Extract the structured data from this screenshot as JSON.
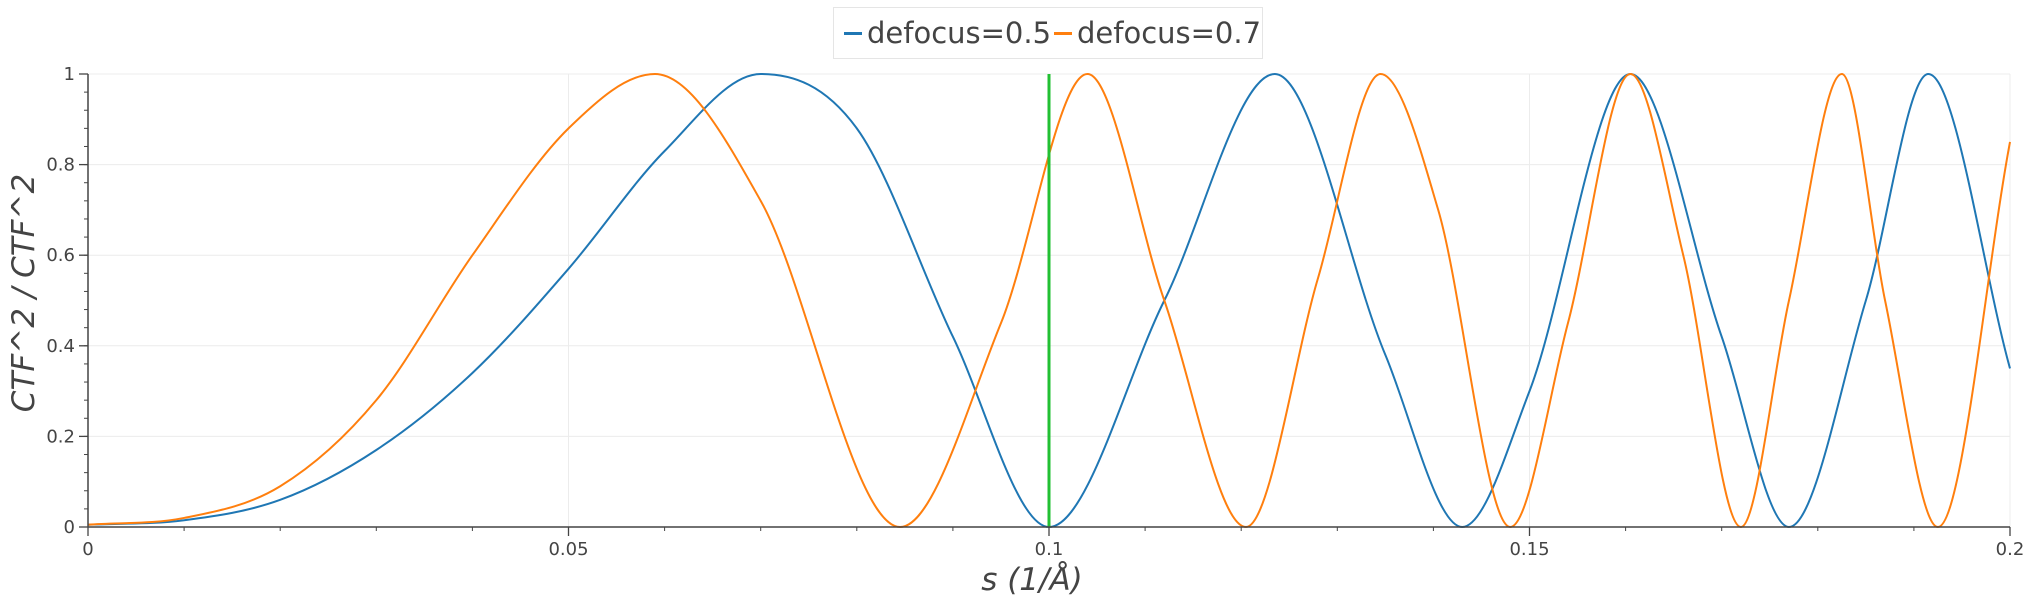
{
  "chart_data": {
    "type": "line",
    "xlabel": "s (1/Å)",
    "ylabel": "CTF^2 / CTF^2",
    "xlim": [
      0,
      0.2
    ],
    "ylim": [
      0,
      1
    ],
    "x_ticks": [
      "0",
      "0.05",
      "0.1",
      "0.15",
      "0.2"
    ],
    "y_ticks": [
      "0",
      "0.2",
      "0.4",
      "0.6",
      "0.8",
      "1"
    ],
    "grid": true,
    "legend_position": "top-center",
    "vertical_marker": {
      "x": 0.1,
      "color": "#22c033"
    },
    "series": [
      {
        "name": "defocus=0.5",
        "color": "#1f77b4",
        "x": [
          0,
          0.01,
          0.02,
          0.03,
          0.04,
          0.05,
          0.06,
          0.07,
          0.08,
          0.09,
          0.1,
          0.112,
          0.1235,
          0.135,
          0.143,
          0.15,
          0.1605,
          0.17,
          0.177,
          0.185,
          0.1915,
          0.2
        ],
        "y": [
          0.005,
          0.015,
          0.06,
          0.17,
          0.34,
          0.57,
          0.83,
          1.0,
          0.88,
          0.42,
          0.0,
          0.5,
          1.0,
          0.38,
          0.0,
          0.3,
          1.0,
          0.42,
          0.0,
          0.5,
          1.0,
          0.35
        ]
      },
      {
        "name": "defocus=0.7",
        "color": "#ff7f0e",
        "x": [
          0,
          0.01,
          0.02,
          0.03,
          0.04,
          0.05,
          0.059,
          0.07,
          0.0845,
          0.095,
          0.104,
          0.112,
          0.1205,
          0.128,
          0.1345,
          0.1405,
          0.148,
          0.154,
          0.1605,
          0.166,
          0.172,
          0.177,
          0.1825,
          0.187,
          0.1925,
          0.2
        ],
        "y": [
          0.005,
          0.02,
          0.09,
          0.28,
          0.6,
          0.88,
          1.0,
          0.72,
          0.0,
          0.45,
          1.0,
          0.5,
          0.0,
          0.55,
          1.0,
          0.7,
          0.0,
          0.45,
          1.0,
          0.6,
          0.0,
          0.5,
          1.0,
          0.5,
          0.0,
          0.85
        ]
      }
    ]
  }
}
